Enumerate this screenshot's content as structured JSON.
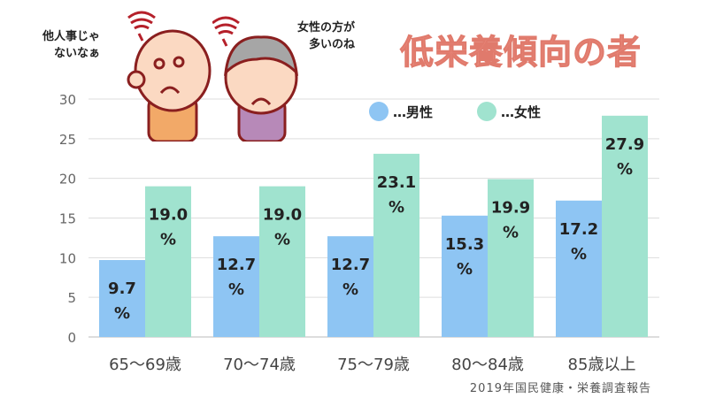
{
  "title": "低栄養傾向の者",
  "speech": {
    "man": [
      "他人事じゃ",
      "ないなぁ"
    ],
    "woman": [
      "女性の方が",
      "多いのね"
    ]
  },
  "source": "2019年国民健康・栄養調査報告",
  "colors": {
    "male": "#8ec5f3",
    "female": "#a0e3cf",
    "title": "#e8877a"
  },
  "chart_data": {
    "type": "bar",
    "categories": [
      "65～69歳",
      "70～74歳",
      "75～79歳",
      "80～84歳",
      "85歳以上"
    ],
    "series": [
      {
        "name": "…男性",
        "values": [
          9.7,
          12.7,
          12.7,
          15.3,
          17.2
        ]
      },
      {
        "name": "…女性",
        "values": [
          19.0,
          19.0,
          23.1,
          19.9,
          27.9
        ]
      }
    ],
    "data_label_unit": "%",
    "yticks": [
      0,
      5,
      10,
      15,
      20,
      25,
      30
    ],
    "ylim": [
      0,
      30
    ],
    "grid": true,
    "legend": "top"
  }
}
